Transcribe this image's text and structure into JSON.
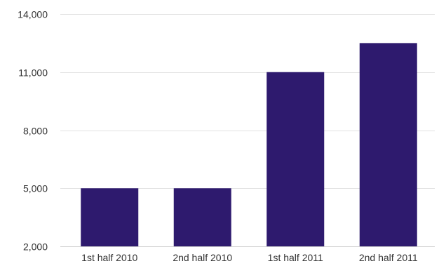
{
  "chart_data": {
    "type": "bar",
    "categories": [
      "1st half 2010",
      "2nd half 2010",
      "1st half 2011",
      "2nd half 2011"
    ],
    "values": [
      5000,
      5000,
      11000,
      12500
    ],
    "ylim": [
      2000,
      14000
    ],
    "yticks": [
      2000,
      5000,
      8000,
      11000,
      14000
    ],
    "ytick_labels": [
      "2,000",
      "5,000",
      "8,000",
      "11,000",
      "14,000"
    ],
    "title": "",
    "xlabel": "",
    "ylabel": "",
    "bar_color": "#2e1a6e",
    "grid": true,
    "legend": "none"
  }
}
